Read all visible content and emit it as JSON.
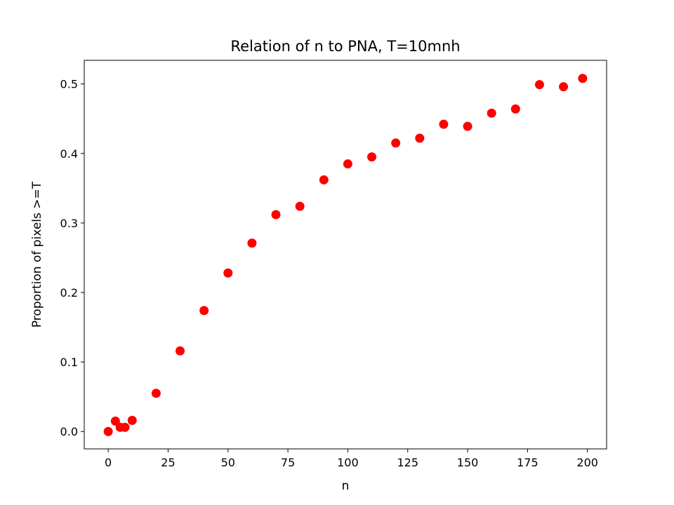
{
  "chart_data": {
    "type": "scatter",
    "title": "Relation of n to PNA, T=10mnh",
    "xlabel": "n",
    "ylabel": "Proportion of pixels >=T",
    "xlim": [
      -10,
      208
    ],
    "ylim": [
      -0.025,
      0.534
    ],
    "xticks": [
      0,
      25,
      50,
      75,
      100,
      125,
      150,
      175,
      200
    ],
    "xtick_labels": [
      "0",
      "25",
      "50",
      "75",
      "100",
      "125",
      "150",
      "175",
      "200"
    ],
    "yticks": [
      0.0,
      0.1,
      0.2,
      0.3,
      0.4,
      0.5
    ],
    "ytick_labels": [
      "0.0",
      "0.1",
      "0.2",
      "0.3",
      "0.4",
      "0.5"
    ],
    "grid": false,
    "marker_color": "#ff0000",
    "points": [
      {
        "x": 0,
        "y": 0.0
      },
      {
        "x": 3,
        "y": 0.015
      },
      {
        "x": 5,
        "y": 0.006
      },
      {
        "x": 7,
        "y": 0.006
      },
      {
        "x": 10,
        "y": 0.016
      },
      {
        "x": 20,
        "y": 0.055
      },
      {
        "x": 30,
        "y": 0.116
      },
      {
        "x": 40,
        "y": 0.174
      },
      {
        "x": 50,
        "y": 0.228
      },
      {
        "x": 60,
        "y": 0.271
      },
      {
        "x": 70,
        "y": 0.312
      },
      {
        "x": 80,
        "y": 0.324
      },
      {
        "x": 90,
        "y": 0.362
      },
      {
        "x": 100,
        "y": 0.385
      },
      {
        "x": 110,
        "y": 0.395
      },
      {
        "x": 120,
        "y": 0.415
      },
      {
        "x": 130,
        "y": 0.422
      },
      {
        "x": 140,
        "y": 0.442
      },
      {
        "x": 150,
        "y": 0.439
      },
      {
        "x": 160,
        "y": 0.458
      },
      {
        "x": 170,
        "y": 0.464
      },
      {
        "x": 180,
        "y": 0.499
      },
      {
        "x": 190,
        "y": 0.496
      },
      {
        "x": 198,
        "y": 0.508
      }
    ]
  }
}
